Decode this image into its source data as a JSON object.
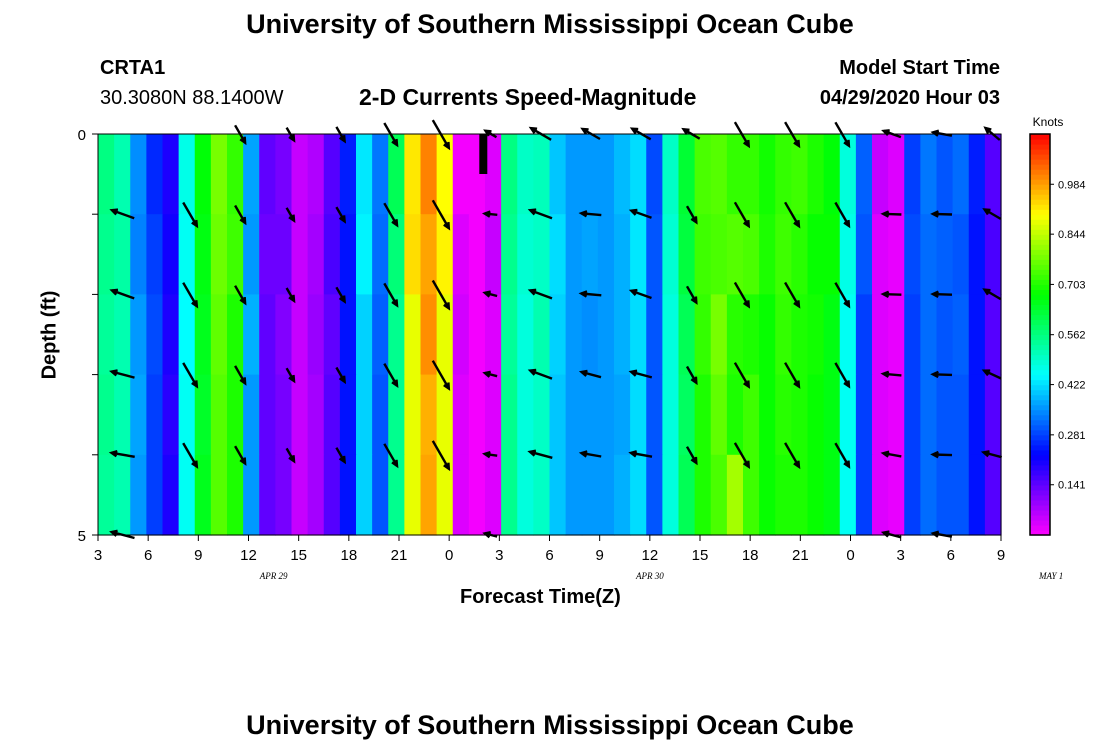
{
  "header": {
    "title": "University of Southern Mississippi Ocean Cube",
    "station_name": "CRTA1",
    "station_coords": "30.3080N 88.1400W",
    "plot_title": "2-D Currents Speed-Magnitude",
    "model_start_label": "Model Start Time",
    "model_start_value": "04/29/2020 Hour 03"
  },
  "footer": {
    "title": "University of Southern Mississippi Ocean Cube"
  },
  "chart_data": {
    "type": "heatmap",
    "title": "2-D Currents Speed-Magnitude",
    "xlabel": "Forecast Time(Z)",
    "ylabel": "Depth (ft)",
    "xlim": [
      0,
      54
    ],
    "ylim": [
      0,
      5
    ],
    "y_ticks": [
      "0",
      "5"
    ],
    "x_ticks": [
      "3",
      "6",
      "9",
      "12",
      "15",
      "18",
      "21",
      "0",
      "3",
      "6",
      "9",
      "12",
      "15",
      "18",
      "21",
      "0",
      "3",
      "6",
      "9"
    ],
    "date_labels": [
      {
        "text": "APR 29",
        "hour": 10.5
      },
      {
        "text": "APR 30",
        "hour": 33
      },
      {
        "text": "MAY 1",
        "hour": 57
      }
    ],
    "colorbar": {
      "unit": "Knots",
      "ticks": [
        "0.141",
        "0.281",
        "0.422",
        "0.562",
        "0.703",
        "0.844",
        "0.984"
      ],
      "tick_values": [
        0.141,
        0.281,
        0.422,
        0.562,
        0.703,
        0.844,
        0.984
      ],
      "range": [
        0,
        1.125
      ]
    },
    "speed_by_hour": [
      0.55,
      0.52,
      0.36,
      0.28,
      0.2,
      0.46,
      0.65,
      0.75,
      0.7,
      0.36,
      0.14,
      0.12,
      0.05,
      0.08,
      0.15,
      0.24,
      0.41,
      0.3,
      0.55,
      0.88,
      0.98,
      0.88,
      0.03,
      0.01,
      0.03,
      0.55,
      0.48,
      0.5,
      0.4,
      0.36,
      0.36,
      0.36,
      0.38,
      0.42,
      0.3,
      0.48,
      0.6,
      0.7,
      0.72,
      0.7,
      0.7,
      0.68,
      0.7,
      0.7,
      0.68,
      0.66,
      0.46,
      0.28,
      0.03,
      0.02,
      0.28,
      0.32,
      0.3,
      0.3,
      0.24,
      0.15
    ],
    "depth_rows": [
      {
        "depth_index": 0,
        "offsets": [
          0.01,
          0.0,
          -0.01,
          -0.02,
          0.0,
          0.01,
          0.02,
          0.03,
          0.02,
          0.01,
          0.0,
          0.0,
          0.0,
          -0.01,
          0.0,
          0.01,
          0.02,
          0.03,
          0.05,
          0.04,
          0.03,
          0.02,
          -0.02,
          0.0,
          0.0,
          0.01,
          0.02,
          0.01,
          0.0,
          0.0,
          0.0,
          0.0,
          0.01,
          0.0,
          -0.01,
          0.02,
          0.03,
          0.04,
          0.03,
          0.02,
          0.02,
          0.01,
          0.02,
          0.03,
          0.02,
          0.01,
          0.02,
          0.03,
          0.02,
          0.01,
          0.0,
          0.01,
          0.0,
          0.02,
          0.01,
          0.0
        ]
      },
      {
        "depth_index": 1,
        "offsets": [
          0.0,
          0.01,
          -0.02,
          0.0,
          0.01,
          0.0,
          0.01,
          0.02,
          0.03,
          0.0,
          -0.01,
          0.01,
          0.0,
          0.0,
          0.01,
          0.0,
          0.03,
          0.02,
          0.02,
          0.05,
          0.0,
          0.03,
          0.0,
          0.0,
          0.02,
          0.0,
          0.01,
          0.0,
          0.02,
          0.0,
          0.01,
          0.0,
          0.0,
          0.01,
          0.0,
          0.01,
          0.02,
          0.03,
          0.02,
          0.05,
          0.04,
          0.02,
          0.03,
          0.01,
          0.0,
          0.02,
          0.01,
          0.02,
          0.0,
          0.0,
          0.01,
          0.0,
          0.01,
          0.0,
          0.0,
          0.01
        ]
      },
      {
        "depth_index": 2,
        "offsets": [
          -0.01,
          0.0,
          0.0,
          0.01,
          0.0,
          -0.01,
          0.0,
          0.01,
          0.0,
          0.02,
          0.0,
          -0.01,
          0.0,
          0.01,
          -0.01,
          0.0,
          0.0,
          0.01,
          0.0,
          0.0,
          0.02,
          0.0,
          0.01,
          0.0,
          0.0,
          -0.01,
          0.0,
          0.02,
          0.01,
          0.0,
          -0.01,
          0.0,
          0.0,
          0.0,
          0.0,
          0.0,
          0.0,
          0.02,
          0.06,
          0.01,
          0.0,
          0.0,
          0.02,
          0.0,
          0.01,
          0.0,
          0.0,
          0.0,
          0.0,
          0.0,
          0.0,
          0.0,
          0.0,
          0.01,
          0.0,
          0.0
        ]
      },
      {
        "depth_index": 3,
        "offsets": [
          0.0,
          0.0,
          0.01,
          0.0,
          -0.01,
          0.0,
          -0.01,
          0.0,
          0.0,
          0.0,
          0.0,
          0.0,
          0.0,
          0.0,
          0.0,
          0.0,
          0.0,
          0.0,
          0.0,
          0.0,
          -0.01,
          0.0,
          0.0,
          0.0,
          0.0,
          0.0,
          0.0,
          0.0,
          0.0,
          0.0,
          0.0,
          0.0,
          -0.01,
          0.0,
          0.0,
          0.0,
          -0.01,
          0.0,
          0.04,
          0.0,
          0.03,
          0.0,
          0.01,
          0.0,
          0.0,
          0.0,
          0.0,
          0.0,
          0.0,
          0.0,
          0.0,
          0.0,
          0.0,
          0.0,
          0.0,
          0.0
        ]
      },
      {
        "depth_index": 4,
        "offsets": [
          -0.01,
          0.0,
          0.0,
          0.0,
          0.0,
          0.0,
          0.0,
          0.0,
          0.0,
          0.0,
          0.0,
          0.0,
          0.0,
          0.0,
          0.0,
          0.0,
          0.0,
          0.0,
          0.0,
          0.0,
          0.0,
          0.0,
          0.0,
          0.0,
          0.0,
          0.0,
          0.0,
          0.0,
          0.0,
          0.0,
          0.0,
          0.0,
          0.0,
          0.0,
          0.0,
          0.0,
          0.0,
          0.0,
          0.02,
          0.12,
          0.03,
          0.0,
          0.0,
          0.0,
          0.0,
          0.0,
          0.0,
          0.0,
          0.0,
          0.0,
          0.0,
          0.0,
          0.0,
          0.0,
          0.0,
          0.0
        ]
      }
    ],
    "vectors": {
      "columns": [
        {
          "hour": 1.5,
          "speed": 0.52
        },
        {
          "hour": 5.5,
          "speed": 0.68
        },
        {
          "hour": 8.5,
          "speed": 0.36
        },
        {
          "hour": 11.5,
          "speed": 0.12
        },
        {
          "hour": 14.5,
          "speed": 0.2
        },
        {
          "hour": 17.5,
          "speed": 0.6
        },
        {
          "hour": 20.5,
          "speed": 0.96
        },
        {
          "hour": 23.5,
          "speed": 0.03
        },
        {
          "hour": 26.5,
          "speed": 0.5
        },
        {
          "hour": 29.5,
          "speed": 0.36
        },
        {
          "hour": 32.5,
          "speed": 0.42
        },
        {
          "hour": 35.5,
          "speed": 0.3
        },
        {
          "hour": 38.5,
          "speed": 0.7
        },
        {
          "hour": 41.5,
          "speed": 0.7
        },
        {
          "hour": 44.5,
          "speed": 0.68
        },
        {
          "hour": 47.5,
          "speed": 0.28
        },
        {
          "hour": 50.5,
          "speed": 0.32
        },
        {
          "hour": 53.5,
          "speed": 0.3
        }
      ],
      "rows": [
        {
          "depth_index": 0,
          "directions_deg": [
            null,
            null,
            300,
            300,
            300,
            300,
            300,
            150,
            150,
            150,
            150,
            150,
            300,
            300,
            300,
            160,
            170,
            140
          ]
        },
        {
          "depth_index": 1,
          "directions_deg": [
            160,
            300,
            300,
            300,
            300,
            300,
            300,
            175,
            160,
            175,
            160,
            300,
            300,
            300,
            300,
            178,
            178,
            150
          ]
        },
        {
          "depth_index": 2,
          "directions_deg": [
            160,
            300,
            300,
            300,
            300,
            300,
            300,
            165,
            160,
            175,
            160,
            300,
            300,
            300,
            300,
            178,
            178,
            150
          ]
        },
        {
          "depth_index": 3,
          "directions_deg": [
            165,
            300,
            300,
            300,
            300,
            300,
            300,
            165,
            160,
            165,
            165,
            300,
            300,
            300,
            300,
            175,
            178,
            155
          ]
        },
        {
          "depth_index": 4,
          "directions_deg": [
            170,
            300,
            300,
            300,
            300,
            300,
            300,
            172,
            165,
            170,
            170,
            300,
            300,
            300,
            300,
            170,
            178,
            165
          ]
        },
        {
          "depth_index": 5,
          "directions_deg": [
            165,
            null,
            null,
            null,
            null,
            null,
            null,
            165,
            null,
            null,
            null,
            null,
            null,
            null,
            null,
            165,
            170,
            null
          ]
        }
      ]
    }
  }
}
